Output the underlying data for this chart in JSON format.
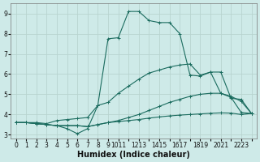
{
  "xlabel": "Humidex (Indice chaleur)",
  "background_color": "#ceeae8",
  "grid_color": "#b8d4d0",
  "line_color": "#1a6b5e",
  "line1_x": [
    0,
    1,
    2,
    3,
    4,
    5,
    6,
    7,
    8,
    9,
    10,
    11,
    12,
    13,
    14,
    15,
    16,
    17,
    18,
    19,
    20,
    21,
    22,
    23
  ],
  "line1_y": [
    3.6,
    3.6,
    3.55,
    3.5,
    3.45,
    3.45,
    3.45,
    3.4,
    3.5,
    3.6,
    3.65,
    3.7,
    3.75,
    3.82,
    3.88,
    3.93,
    3.97,
    4.0,
    4.03,
    4.06,
    4.08,
    4.07,
    4.0,
    4.05
  ],
  "line2_x": [
    0,
    1,
    2,
    3,
    4,
    5,
    6,
    7,
    8,
    9,
    10,
    11,
    12,
    13,
    14,
    15,
    16,
    17,
    18,
    19,
    20,
    21,
    22,
    23
  ],
  "line2_y": [
    3.6,
    3.6,
    3.55,
    3.5,
    3.45,
    3.45,
    3.45,
    3.4,
    3.5,
    3.6,
    3.7,
    3.85,
    4.0,
    4.2,
    4.4,
    4.6,
    4.75,
    4.9,
    5.0,
    5.05,
    5.05,
    4.9,
    4.65,
    4.05
  ],
  "line3_x": [
    0,
    1,
    2,
    3,
    4,
    5,
    6,
    7,
    8,
    9,
    10,
    11,
    12,
    13,
    14,
    15,
    16,
    17,
    18,
    19,
    20,
    21,
    22,
    23
  ],
  "line3_y": [
    3.6,
    3.6,
    3.55,
    3.5,
    3.45,
    3.3,
    3.05,
    3.3,
    4.45,
    7.75,
    7.8,
    9.1,
    9.1,
    8.65,
    8.55,
    8.55,
    8.0,
    5.95,
    5.9,
    6.1,
    5.05,
    4.85,
    4.1,
    4.05
  ],
  "line4_x": [
    0,
    2,
    3,
    4,
    5,
    6,
    7,
    8,
    9,
    10,
    11,
    12,
    13,
    14,
    15,
    16,
    17,
    18,
    19,
    20,
    21,
    22,
    23
  ],
  "line4_y": [
    3.6,
    3.6,
    3.55,
    3.7,
    3.75,
    3.8,
    3.85,
    4.45,
    4.6,
    5.05,
    5.4,
    5.75,
    6.05,
    6.2,
    6.35,
    6.45,
    6.5,
    5.95,
    6.1,
    6.1,
    4.8,
    4.75,
    4.05
  ],
  "xlim": [
    -0.5,
    23.5
  ],
  "ylim": [
    2.8,
    9.5
  ],
  "yticks": [
    3,
    4,
    5,
    6,
    7,
    8,
    9
  ],
  "xtick_positions": [
    0,
    1,
    2,
    3,
    4,
    5,
    6,
    7,
    8,
    9,
    10,
    11,
    12,
    13,
    14,
    15,
    16,
    17,
    18,
    19,
    20,
    21,
    22,
    23
  ],
  "xtick_labels": [
    "0",
    "1",
    "2",
    "3",
    "4",
    "5",
    "6",
    "7",
    "8",
    "9",
    "1011",
    "",
    "1213",
    "",
    "1415",
    "",
    "1617",
    "",
    "1819",
    "",
    "2021",
    "",
    "2223",
    ""
  ],
  "tick_fontsize": 5.5,
  "label_fontsize": 7.0
}
